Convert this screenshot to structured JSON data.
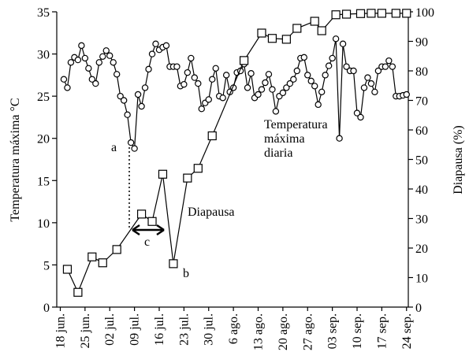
{
  "chart_data": {
    "type": "line",
    "y_label": "Temperatura máxima °C",
    "y2_label": "Diapausa (%)",
    "xlim": [
      -1,
      98.5
    ],
    "ylim": [
      0,
      35
    ],
    "y2lim": [
      0,
      100
    ],
    "yticks": [
      0,
      5,
      10,
      15,
      20,
      25,
      30,
      35
    ],
    "y2ticks": [
      0,
      10,
      20,
      30,
      40,
      50,
      60,
      70,
      80,
      90,
      100
    ],
    "xticks": [
      {
        "value": 0,
        "label": "18 jun."
      },
      {
        "value": 7,
        "label": "25 jun."
      },
      {
        "value": 14,
        "label": "02 jul."
      },
      {
        "value": 21,
        "label": "09 jul."
      },
      {
        "value": 28,
        "label": "16 jul."
      },
      {
        "value": 35,
        "label": "23 jul."
      },
      {
        "value": 42,
        "label": "30 jul."
      },
      {
        "value": 49,
        "label": "6 ago."
      },
      {
        "value": 56,
        "label": "13 ago."
      },
      {
        "value": 63,
        "label": "20 ago."
      },
      {
        "value": 70,
        "label": "27 ago."
      },
      {
        "value": 77,
        "label": "03 sep."
      },
      {
        "value": 84,
        "label": "10 sep."
      },
      {
        "value": 91,
        "label": "17 sep."
      },
      {
        "value": 98,
        "label": "24 sep."
      }
    ],
    "series": [
      {
        "name": "Temperatura máxima diaria",
        "marker": "circle",
        "color": "#000",
        "axis": "y",
        "x": [
          1,
          2,
          3,
          4,
          5,
          6,
          7,
          8,
          9,
          10,
          11,
          12,
          13,
          14,
          15,
          16,
          17,
          18,
          19,
          20,
          21,
          22,
          23,
          24,
          25,
          26,
          27,
          28,
          29,
          30,
          31,
          32,
          33,
          34,
          35,
          36,
          37,
          38,
          39,
          40,
          41,
          42,
          43,
          44,
          45,
          46,
          47,
          48,
          49,
          50,
          51,
          52,
          53,
          54,
          55,
          56,
          57,
          58,
          59,
          60,
          61,
          62,
          63,
          64,
          65,
          66,
          67,
          68,
          69,
          70,
          71,
          72,
          73,
          74,
          75,
          76,
          77,
          78,
          79,
          80,
          81,
          82,
          83,
          84,
          85,
          86,
          87,
          88,
          89,
          90,
          91,
          92,
          93,
          94,
          95,
          96,
          97,
          98
        ],
        "values": [
          27.0,
          26.0,
          29.0,
          29.6,
          29.3,
          31.0,
          29.5,
          28.3,
          27.0,
          26.5,
          29.0,
          29.7,
          30.4,
          29.8,
          29.0,
          27.6,
          25.0,
          24.5,
          22.8,
          19.5,
          18.8,
          25.2,
          23.8,
          26.0,
          28.2,
          30.0,
          31.2,
          30.5,
          30.8,
          31.0,
          28.5,
          28.5,
          28.5,
          26.2,
          26.4,
          27.8,
          29.5,
          27.2,
          26.5,
          23.5,
          24.2,
          24.6,
          27.0,
          28.3,
          25.0,
          24.8,
          27.5,
          25.5,
          26.0,
          27.8,
          28.0,
          28.8,
          26.0,
          27.7,
          24.8,
          25.2,
          25.8,
          26.6,
          27.6,
          25.8,
          23.2,
          25.0,
          25.4,
          26.0,
          26.5,
          27.0,
          28.0,
          29.5,
          29.6,
          27.5,
          26.8,
          26.2,
          24.0,
          25.5,
          27.5,
          28.6,
          29.5,
          31.8,
          20.0,
          31.2,
          28.5,
          28.0,
          28.0,
          23.0,
          22.5,
          26.0,
          27.2,
          26.5,
          25.5,
          28.0,
          28.5,
          28.5,
          29.2,
          28.5,
          25.0,
          25.0,
          25.1,
          25.2
        ]
      },
      {
        "name": "Diapausa",
        "marker": "square",
        "color": "#000",
        "axis": "y2",
        "x": [
          2,
          5,
          9,
          12,
          16,
          23,
          26,
          29,
          32,
          36,
          39,
          43,
          52,
          57,
          60,
          64,
          67,
          72,
          74,
          78,
          81,
          85,
          88,
          91,
          95,
          98
        ],
        "values": [
          12.8,
          5,
          17,
          15,
          19.5,
          31.5,
          29,
          45,
          14.7,
          43.7,
          47,
          58,
          83.5,
          92.8,
          91,
          90.7,
          94.4,
          96.8,
          93.6,
          99,
          99.2,
          99.4,
          99.5,
          99.5,
          99.5,
          99.5
        ]
      }
    ],
    "annotations": {
      "a": "a",
      "b": "b",
      "c": "c",
      "label_lines": [
        "Temperatura",
        "máxima",
        "diaria"
      ]
    }
  }
}
